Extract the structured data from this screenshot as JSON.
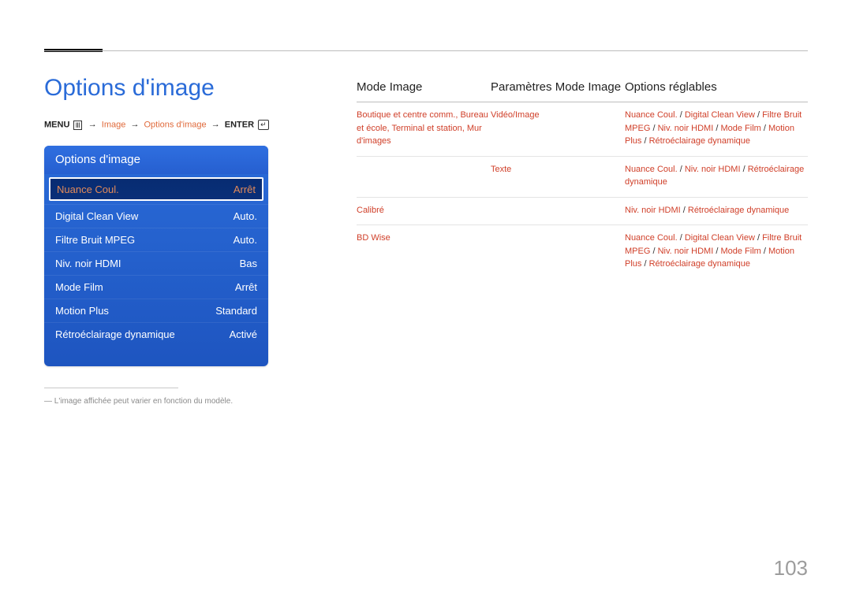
{
  "page": {
    "number": "103"
  },
  "heading": "Options d'image",
  "breadcrumb": {
    "menu": "MENU",
    "arrow": "→",
    "image": "Image",
    "options": "Options d'image",
    "enter": "ENTER"
  },
  "panel": {
    "title": "Options d'image",
    "rows": [
      {
        "label": "Nuance Coul.",
        "value": "Arrêt",
        "selected": true
      },
      {
        "label": "Digital Clean View",
        "value": "Auto."
      },
      {
        "label": "Filtre Bruit MPEG",
        "value": "Auto."
      },
      {
        "label": "Niv. noir HDMI",
        "value": "Bas"
      },
      {
        "label": "Mode Film",
        "value": "Arrêt"
      },
      {
        "label": "Motion Plus",
        "value": "Standard"
      },
      {
        "label": "Rétroéclairage dynamique",
        "value": "Activé"
      }
    ]
  },
  "footnote": "―  L'image affichée peut varier en fonction du modèle.",
  "headers": {
    "mode": "Mode Image",
    "param": "Paramètres Mode Image",
    "opt": "Options réglables"
  },
  "table": [
    {
      "mode": "Boutique et centre comm., Bureau et école, Terminal et station, Mur d'images",
      "param": "Vidéo/Image",
      "opts": [
        "Nuance Coul.",
        "Digital Clean View",
        "Filtre Bruit MPEG",
        "Niv. noir HDMI",
        "Mode Film",
        "Motion Plus",
        "Rétroéclairage dynamique"
      ]
    },
    {
      "mode": "",
      "param": "Texte",
      "opts": [
        "Nuance Coul.",
        "Niv. noir HDMI",
        "Rétroéclairage dynamique"
      ]
    },
    {
      "mode": "Calibré",
      "param": "",
      "opts": [
        "Niv. noir HDMI",
        "Rétroéclairage dynamique"
      ]
    },
    {
      "mode": "BD Wise",
      "param": "",
      "opts": [
        "Nuance Coul.",
        "Digital Clean View",
        "Filtre Bruit MPEG",
        "Niv. noir HDMI",
        "Mode Film",
        "Motion Plus",
        "Rétroéclairage dynamique"
      ]
    }
  ]
}
